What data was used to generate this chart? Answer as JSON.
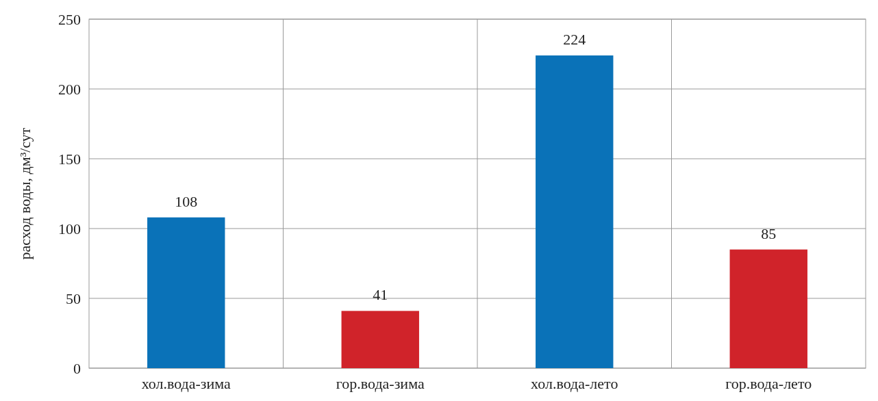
{
  "chart_data": {
    "type": "bar",
    "ylabel": "расход воды, дм³/сут",
    "categories": [
      "хол.вода-зима",
      "гор.вода-зима",
      "хол.вода-лето",
      "гор.вода-лето"
    ],
    "values": [
      108,
      41,
      224,
      85
    ],
    "colors": [
      "#0a72b8",
      "#d0232a",
      "#0a72b8",
      "#d0232a"
    ],
    "ylim": [
      0,
      250
    ],
    "yticks": [
      0,
      50,
      100,
      150,
      200,
      250
    ],
    "grid": true,
    "data_labels": true
  }
}
